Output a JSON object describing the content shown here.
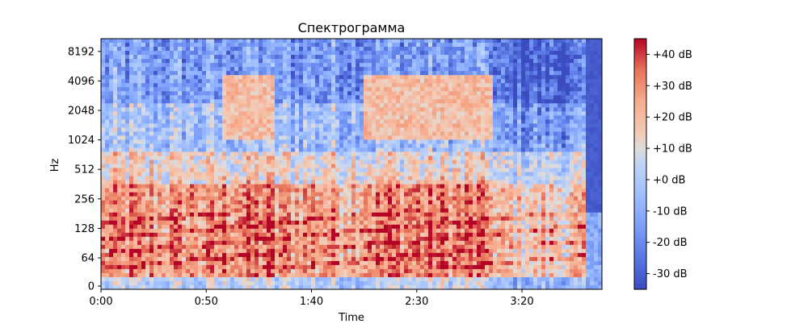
{
  "chart_data": {
    "type": "heatmap",
    "title": "Спектрограмма",
    "xlabel": "Time",
    "ylabel": "Hz",
    "x_scale": "time",
    "y_scale": "log",
    "xlim_seconds": [
      0,
      238
    ],
    "x_ticks": [
      {
        "t": 0,
        "label": "0:00"
      },
      {
        "t": 50,
        "label": "0:50"
      },
      {
        "t": 100,
        "label": "1:40"
      },
      {
        "t": 150,
        "label": "2:30"
      },
      {
        "t": 200,
        "label": "3:20"
      }
    ],
    "y_ticks": [
      {
        "hz": 0,
        "label": "0"
      },
      {
        "hz": 64,
        "label": "64"
      },
      {
        "hz": 128,
        "label": "128"
      },
      {
        "hz": 256,
        "label": "256"
      },
      {
        "hz": 512,
        "label": "512"
      },
      {
        "hz": 1024,
        "label": "1024"
      },
      {
        "hz": 2048,
        "label": "2048"
      },
      {
        "hz": 4096,
        "label": "4096"
      },
      {
        "hz": 8192,
        "label": "8192"
      }
    ],
    "colorbar": {
      "colormap": "coolwarm",
      "range_db": [
        -35,
        45
      ],
      "ticks": [
        {
          "v": 40,
          "label": "+40 dB"
        },
        {
          "v": 30,
          "label": "+30 dB"
        },
        {
          "v": 20,
          "label": "+20 dB"
        },
        {
          "v": 10,
          "label": "+10 dB"
        },
        {
          "v": 0,
          "label": "+0 dB"
        },
        {
          "v": -10,
          "label": "-10 dB"
        },
        {
          "v": -20,
          "label": "-20 dB"
        },
        {
          "v": -30,
          "label": "-30 dB"
        }
      ]
    },
    "segments_seconds": [
      {
        "start": 0,
        "end": 58,
        "energy": "low-mid"
      },
      {
        "start": 58,
        "end": 82,
        "energy": "high"
      },
      {
        "start": 82,
        "end": 125,
        "energy": "low-mid"
      },
      {
        "start": 125,
        "end": 187,
        "energy": "high"
      },
      {
        "start": 187,
        "end": 230,
        "energy": "decay"
      },
      {
        "start": 230,
        "end": 238,
        "energy": "silence"
      }
    ]
  }
}
